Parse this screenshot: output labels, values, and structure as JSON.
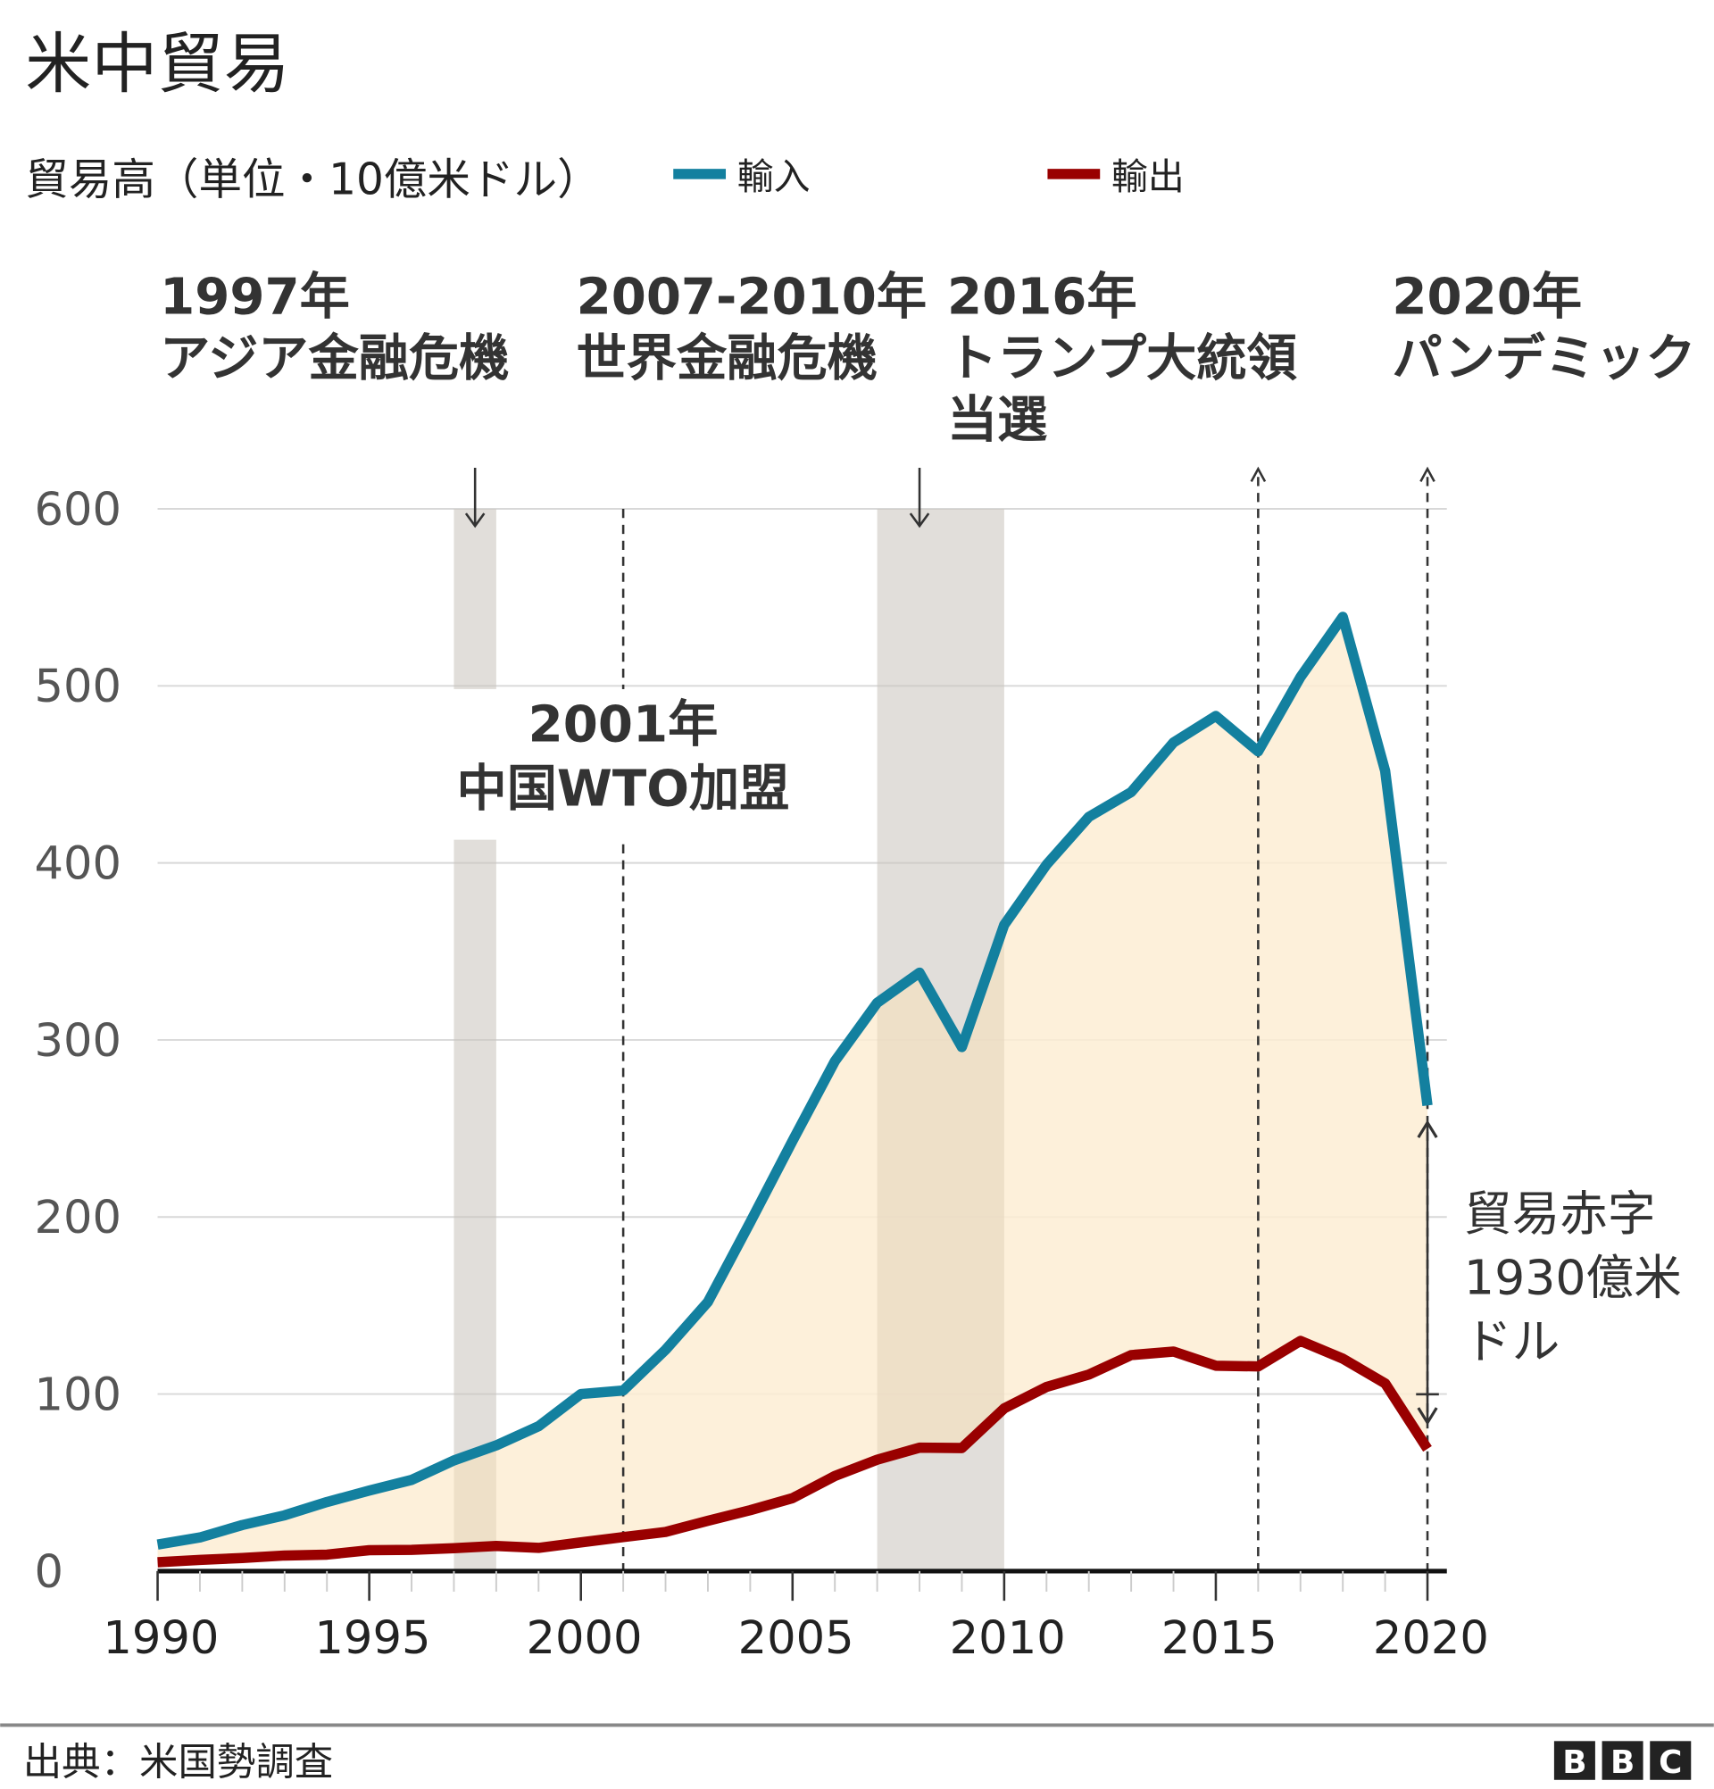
{
  "title": "米中貿易",
  "subtitle": "貿易高（単位・10億米ドル）",
  "source": "出典：米国勢調査",
  "logo": "BBC",
  "colors": {
    "imports": "#13809f",
    "exports": "#990000",
    "fill": "#fdedd3",
    "shade": "#ebebeb"
  },
  "annotations": {
    "a1997": [
      "1997年",
      "アジア金融危機"
    ],
    "a2007": [
      "2007-2010年",
      "世界金融危機"
    ],
    "a2016": [
      "2016年",
      "トランプ大統領",
      "当選"
    ],
    "a2020": [
      "2020年",
      "パンデミック"
    ],
    "a2001": [
      "2001年",
      "中国WTO加盟"
    ],
    "deficit": [
      "貿易赤字",
      "1930億米",
      "ドル"
    ]
  },
  "chart_data": {
    "type": "line",
    "title": "米中貿易",
    "ylabel": "貿易高（単位・10億米ドル）",
    "xlim": [
      1990,
      2020
    ],
    "ylim": [
      0,
      600
    ],
    "yticks": [
      0,
      100,
      200,
      300,
      400,
      500,
      600
    ],
    "xticks": [
      1990,
      1995,
      2000,
      2005,
      2010,
      2015,
      2020
    ],
    "grid": true,
    "legend_placement": "top",
    "x": [
      1990,
      1991,
      1992,
      1993,
      1994,
      1995,
      1996,
      1997,
      1998,
      1999,
      2000,
      2001,
      2002,
      2003,
      2004,
      2005,
      2006,
      2007,
      2008,
      2009,
      2010,
      2011,
      2012,
      2013,
      2014,
      2015,
      2016,
      2017,
      2018,
      2019,
      2020
    ],
    "series": [
      {
        "name": "輸入",
        "color": "#13809f",
        "values": [
          15,
          19,
          26,
          31.5,
          39,
          45.5,
          51.5,
          62.5,
          71,
          81.8,
          100,
          102,
          125,
          152,
          197,
          243,
          288,
          321,
          338,
          296,
          365,
          399,
          426,
          440,
          468,
          483,
          463,
          505,
          539,
          452,
          263
        ]
      },
      {
        "name": "輸出",
        "color": "#990000",
        "values": [
          5,
          6.3,
          7.4,
          8.8,
          9.3,
          11.8,
          12,
          12.9,
          14.2,
          13.1,
          16.2,
          19.2,
          22.1,
          28.4,
          34.4,
          41.2,
          53.7,
          62.9,
          69.7,
          69.5,
          91.9,
          104,
          111,
          122,
          124,
          116,
          115.6,
          130,
          120,
          106,
          69
        ]
      }
    ],
    "shaded_periods": [
      [
        1997,
        1998
      ],
      [
        2007,
        2010
      ]
    ],
    "event_lines": [
      2001,
      2016,
      2020
    ]
  }
}
